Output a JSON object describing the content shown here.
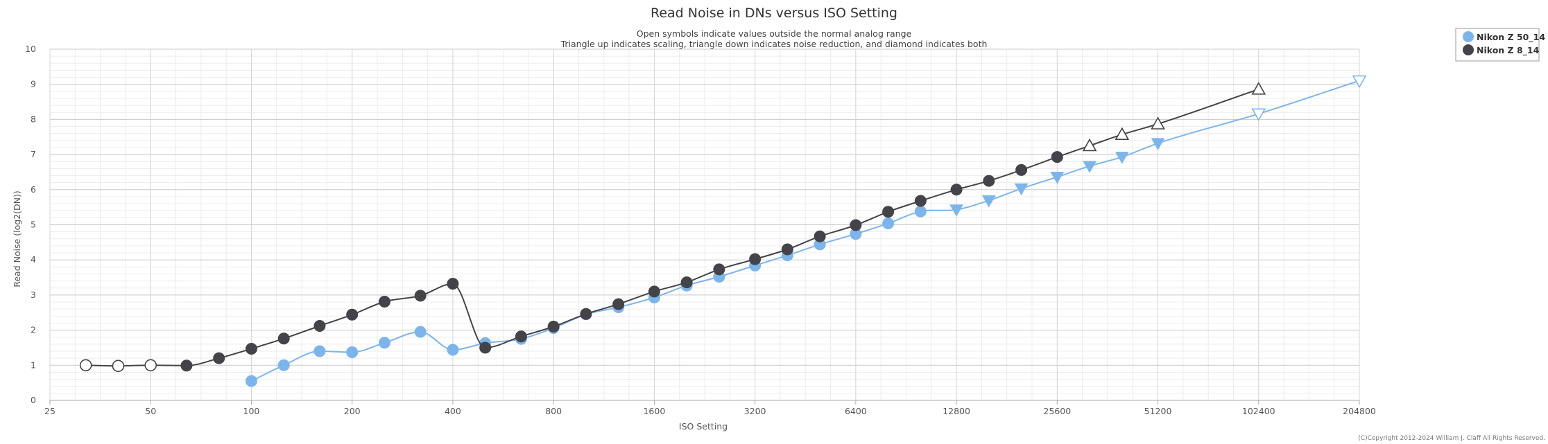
{
  "chart_data": {
    "type": "line",
    "title": "Read Noise in DNs versus ISO Setting",
    "subtitle": [
      "Open symbols indicate values outside the normal analog range",
      "Triangle up indicates scaling, triangle down indicates noise reduction, and diamond indicates both"
    ],
    "xlabel": "ISO Setting",
    "ylabel": "Read Noise (log2(DN))",
    "x_scale": "log2",
    "xlim": [
      25,
      204800
    ],
    "ylim": [
      0,
      10
    ],
    "x_ticks": [
      25,
      50,
      100,
      200,
      400,
      800,
      1600,
      3200,
      6400,
      12800,
      25600,
      51200,
      102400,
      204800
    ],
    "y_ticks": [
      0,
      1,
      2,
      3,
      4,
      5,
      6,
      7,
      8,
      9,
      10
    ],
    "grid": true,
    "legend_position": "top-right",
    "credit": "(C)Copyright 2012-2024 William J. Claff All Rights Reserved.",
    "series": [
      {
        "name": "Nikon Z 50_14",
        "color": "#7cb5ec",
        "points": [
          {
            "x": 100,
            "y": 0.55,
            "marker": "circle",
            "open": false
          },
          {
            "x": 125,
            "y": 1.0,
            "marker": "circle",
            "open": false
          },
          {
            "x": 160,
            "y": 1.4,
            "marker": "circle",
            "open": false
          },
          {
            "x": 200,
            "y": 1.37,
            "marker": "circle",
            "open": false
          },
          {
            "x": 250,
            "y": 1.64,
            "marker": "circle",
            "open": false
          },
          {
            "x": 320,
            "y": 1.95,
            "marker": "circle",
            "open": false
          },
          {
            "x": 400,
            "y": 1.44,
            "marker": "circle",
            "open": false
          },
          {
            "x": 500,
            "y": 1.63,
            "marker": "circle",
            "open": false
          },
          {
            "x": 640,
            "y": 1.75,
            "marker": "circle",
            "open": false
          },
          {
            "x": 800,
            "y": 2.06,
            "marker": "circle",
            "open": false
          },
          {
            "x": 1000,
            "y": 2.45,
            "marker": "circle",
            "open": false
          },
          {
            "x": 1250,
            "y": 2.65,
            "marker": "circle",
            "open": false
          },
          {
            "x": 1600,
            "y": 2.93,
            "marker": "circle",
            "open": false
          },
          {
            "x": 2000,
            "y": 3.27,
            "marker": "circle",
            "open": false
          },
          {
            "x": 2500,
            "y": 3.52,
            "marker": "circle",
            "open": false
          },
          {
            "x": 3200,
            "y": 3.84,
            "marker": "circle",
            "open": false
          },
          {
            "x": 4000,
            "y": 4.13,
            "marker": "circle",
            "open": false
          },
          {
            "x": 5000,
            "y": 4.44,
            "marker": "circle",
            "open": false
          },
          {
            "x": 6400,
            "y": 4.74,
            "marker": "circle",
            "open": false
          },
          {
            "x": 8000,
            "y": 5.04,
            "marker": "circle",
            "open": false
          },
          {
            "x": 10000,
            "y": 5.38,
            "marker": "circle",
            "open": false
          },
          {
            "x": 12800,
            "y": 5.43,
            "marker": "triangle-down",
            "open": false
          },
          {
            "x": 16000,
            "y": 5.69,
            "marker": "triangle-down",
            "open": false
          },
          {
            "x": 20000,
            "y": 6.03,
            "marker": "triangle-down",
            "open": false
          },
          {
            "x": 25600,
            "y": 6.36,
            "marker": "triangle-down",
            "open": false
          },
          {
            "x": 32000,
            "y": 6.67,
            "marker": "triangle-down",
            "open": false
          },
          {
            "x": 40000,
            "y": 6.93,
            "marker": "triangle-down",
            "open": false
          },
          {
            "x": 51200,
            "y": 7.32,
            "marker": "triangle-down",
            "open": false
          },
          {
            "x": 102400,
            "y": 8.16,
            "marker": "triangle-down",
            "open": true
          },
          {
            "x": 204800,
            "y": 9.1,
            "marker": "triangle-down",
            "open": true
          }
        ]
      },
      {
        "name": "Nikon Z 8_14",
        "color": "#434348",
        "points": [
          {
            "x": 32,
            "y": 1.0,
            "marker": "circle",
            "open": true
          },
          {
            "x": 40,
            "y": 0.98,
            "marker": "circle",
            "open": true
          },
          {
            "x": 50,
            "y": 1.0,
            "marker": "circle",
            "open": true
          },
          {
            "x": 64,
            "y": 0.99,
            "marker": "circle",
            "open": false
          },
          {
            "x": 80,
            "y": 1.2,
            "marker": "circle",
            "open": false
          },
          {
            "x": 100,
            "y": 1.47,
            "marker": "circle",
            "open": false
          },
          {
            "x": 125,
            "y": 1.76,
            "marker": "circle",
            "open": false
          },
          {
            "x": 160,
            "y": 2.12,
            "marker": "circle",
            "open": false
          },
          {
            "x": 200,
            "y": 2.44,
            "marker": "circle",
            "open": false
          },
          {
            "x": 250,
            "y": 2.81,
            "marker": "circle",
            "open": false
          },
          {
            "x": 320,
            "y": 2.98,
            "marker": "circle",
            "open": false
          },
          {
            "x": 400,
            "y": 3.32,
            "marker": "circle",
            "open": false
          },
          {
            "x": 500,
            "y": 1.5,
            "marker": "circle",
            "open": false
          },
          {
            "x": 640,
            "y": 1.82,
            "marker": "circle",
            "open": false
          },
          {
            "x": 800,
            "y": 2.1,
            "marker": "circle",
            "open": false
          },
          {
            "x": 1000,
            "y": 2.46,
            "marker": "circle",
            "open": false
          },
          {
            "x": 1250,
            "y": 2.74,
            "marker": "circle",
            "open": false
          },
          {
            "x": 1600,
            "y": 3.1,
            "marker": "circle",
            "open": false
          },
          {
            "x": 2000,
            "y": 3.36,
            "marker": "circle",
            "open": false
          },
          {
            "x": 2500,
            "y": 3.73,
            "marker": "circle",
            "open": false
          },
          {
            "x": 3200,
            "y": 4.02,
            "marker": "circle",
            "open": false
          },
          {
            "x": 4000,
            "y": 4.3,
            "marker": "circle",
            "open": false
          },
          {
            "x": 5000,
            "y": 4.67,
            "marker": "circle",
            "open": false
          },
          {
            "x": 6400,
            "y": 4.99,
            "marker": "circle",
            "open": false
          },
          {
            "x": 8000,
            "y": 5.37,
            "marker": "circle",
            "open": false
          },
          {
            "x": 10000,
            "y": 5.68,
            "marker": "circle",
            "open": false
          },
          {
            "x": 12800,
            "y": 6.0,
            "marker": "circle",
            "open": false
          },
          {
            "x": 16000,
            "y": 6.25,
            "marker": "circle",
            "open": false
          },
          {
            "x": 20000,
            "y": 6.56,
            "marker": "circle",
            "open": false
          },
          {
            "x": 25600,
            "y": 6.93,
            "marker": "circle",
            "open": false
          },
          {
            "x": 32000,
            "y": 7.25,
            "marker": "triangle-up",
            "open": true
          },
          {
            "x": 40000,
            "y": 7.57,
            "marker": "triangle-up",
            "open": true
          },
          {
            "x": 51200,
            "y": 7.87,
            "marker": "triangle-up",
            "open": true
          },
          {
            "x": 102400,
            "y": 8.86,
            "marker": "triangle-up",
            "open": true
          }
        ]
      }
    ]
  }
}
